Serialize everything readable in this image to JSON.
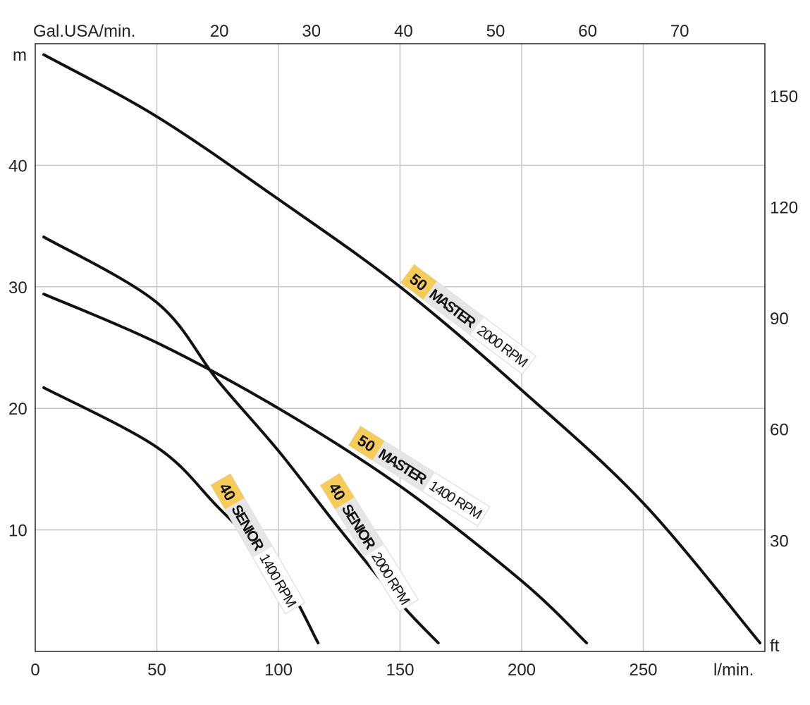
{
  "chart_data": {
    "type": "line",
    "title": "",
    "xlabel": "l/min.",
    "ylabel": "m",
    "x2label": "Gal.USA/min.",
    "y2label": "ft",
    "xlim": [
      0,
      300
    ],
    "ylim": [
      0,
      50
    ],
    "x_ticks": [
      0,
      50,
      100,
      150,
      200,
      250
    ],
    "y_ticks": [
      10,
      20,
      30,
      40
    ],
    "x2_ticks": [
      20,
      30,
      40,
      50,
      60,
      70
    ],
    "y2_ticks": [
      30,
      60,
      90,
      120,
      150
    ],
    "grid": true,
    "colors": {
      "curve": "#111111",
      "badge": "#f5cc5a",
      "tag": "#e6e6e6",
      "grid": "#c8c8c8"
    },
    "series": [
      {
        "model_number": "50",
        "model_name": "MASTER",
        "rpm": "2000 RPM",
        "points": [
          [
            3.5,
            49.1
          ],
          [
            50,
            44.0
          ],
          [
            100,
            37.2
          ],
          [
            150,
            30.0
          ],
          [
            200,
            21.5
          ],
          [
            250,
            12.2
          ],
          [
            298,
            0.7
          ]
        ]
      },
      {
        "model_number": "50",
        "model_name": "MASTER",
        "rpm": "1400 RPM",
        "points": [
          [
            3.5,
            29.4
          ],
          [
            50,
            25.4
          ],
          [
            100,
            20.0
          ],
          [
            150,
            13.6
          ],
          [
            200,
            5.8
          ],
          [
            226.7,
            0.7
          ]
        ]
      },
      {
        "model_number": "40",
        "model_name": "SENIOR",
        "rpm": "2000 RPM",
        "points": [
          [
            3.5,
            34.1
          ],
          [
            50,
            28.7
          ],
          [
            75,
            22.3
          ],
          [
            100,
            16.5
          ],
          [
            125,
            10.1
          ],
          [
            150,
            4.0
          ],
          [
            165.7,
            0.7
          ]
        ]
      },
      {
        "model_number": "40",
        "model_name": "SENIOR",
        "rpm": "1400 RPM",
        "points": [
          [
            3.5,
            21.7
          ],
          [
            50,
            16.8
          ],
          [
            75,
            11.9
          ],
          [
            100,
            6.6
          ],
          [
            116.3,
            0.7
          ]
        ]
      }
    ]
  }
}
